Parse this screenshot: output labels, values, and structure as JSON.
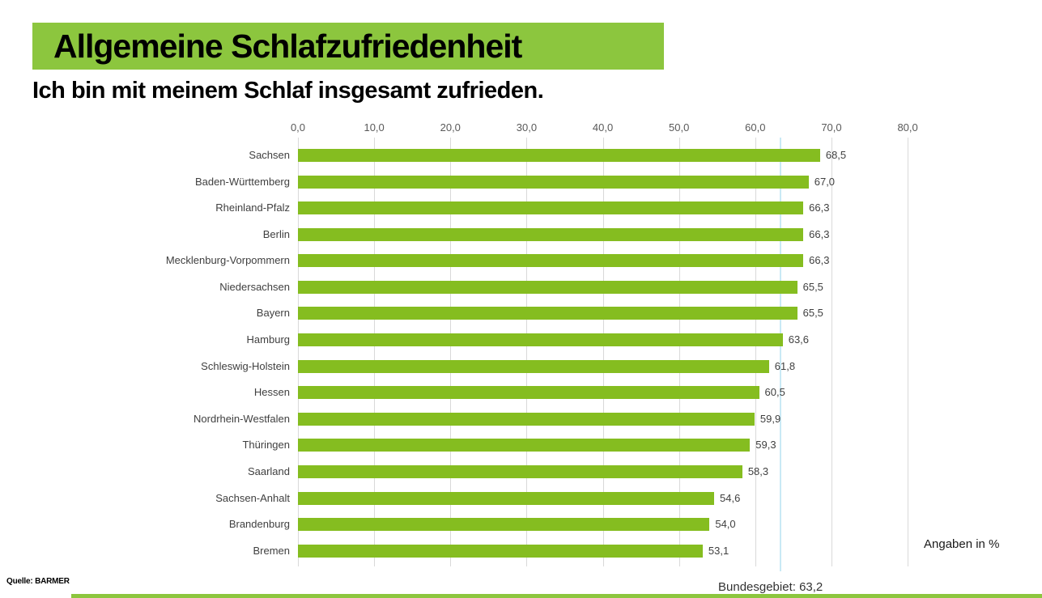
{
  "header": {
    "banner_title": "Allgemeine Schlafzufriedenheit",
    "banner_color": "#8CC63E",
    "subtitle": "Ich bin mit meinem Schlaf insgesamt zufrieden."
  },
  "chart_data": {
    "type": "bar",
    "orientation": "horizontal",
    "title": "Allgemeine Schlafzufriedenheit",
    "subtitle": "Ich bin mit meinem Schlaf insgesamt zufrieden.",
    "categories": [
      "Sachsen",
      "Baden-Württemberg",
      "Rheinland-Pfalz",
      "Berlin",
      "Mecklenburg-Vorpommern",
      "Niedersachsen",
      "Bayern",
      "Hamburg",
      "Schleswig-Holstein",
      "Hessen",
      "Nordrhein-Westfalen",
      "Thüringen",
      "Saarland",
      "Sachsen-Anhalt",
      "Brandenburg",
      "Bremen"
    ],
    "values": [
      68.5,
      67.0,
      66.3,
      66.3,
      66.3,
      65.5,
      65.5,
      63.6,
      61.8,
      60.5,
      59.9,
      59.3,
      58.3,
      54.6,
      54.0,
      53.1
    ],
    "value_labels": [
      "68,5",
      "67,0",
      "66,3",
      "66,3",
      "66,3",
      "65,5",
      "65,5",
      "63,6",
      "61,8",
      "60,5",
      "59,9",
      "59,3",
      "58,3",
      "54,6",
      "54,0",
      "53,1"
    ],
    "xlim": [
      0,
      80
    ],
    "x_ticks": [
      0,
      10,
      20,
      30,
      40,
      50,
      60,
      70,
      80
    ],
    "x_tick_labels": [
      "0,0",
      "10,0",
      "20,0",
      "30,0",
      "40,0",
      "50,0",
      "60,0",
      "70,0",
      "80,0"
    ],
    "grid": true,
    "legend": "none",
    "bar_color": "#85BD20",
    "reference_line": {
      "value": 63.2,
      "color": "#C9E9F5",
      "label": "Bundesgebiet: 63,2"
    },
    "unit_note": "Angaben in %"
  },
  "footer": {
    "source": "Quelle: BARMER",
    "reference_label": "Bundesgebiet: 63,2",
    "unit_note": "Angaben in %",
    "strip_color": "#8CC63E"
  }
}
